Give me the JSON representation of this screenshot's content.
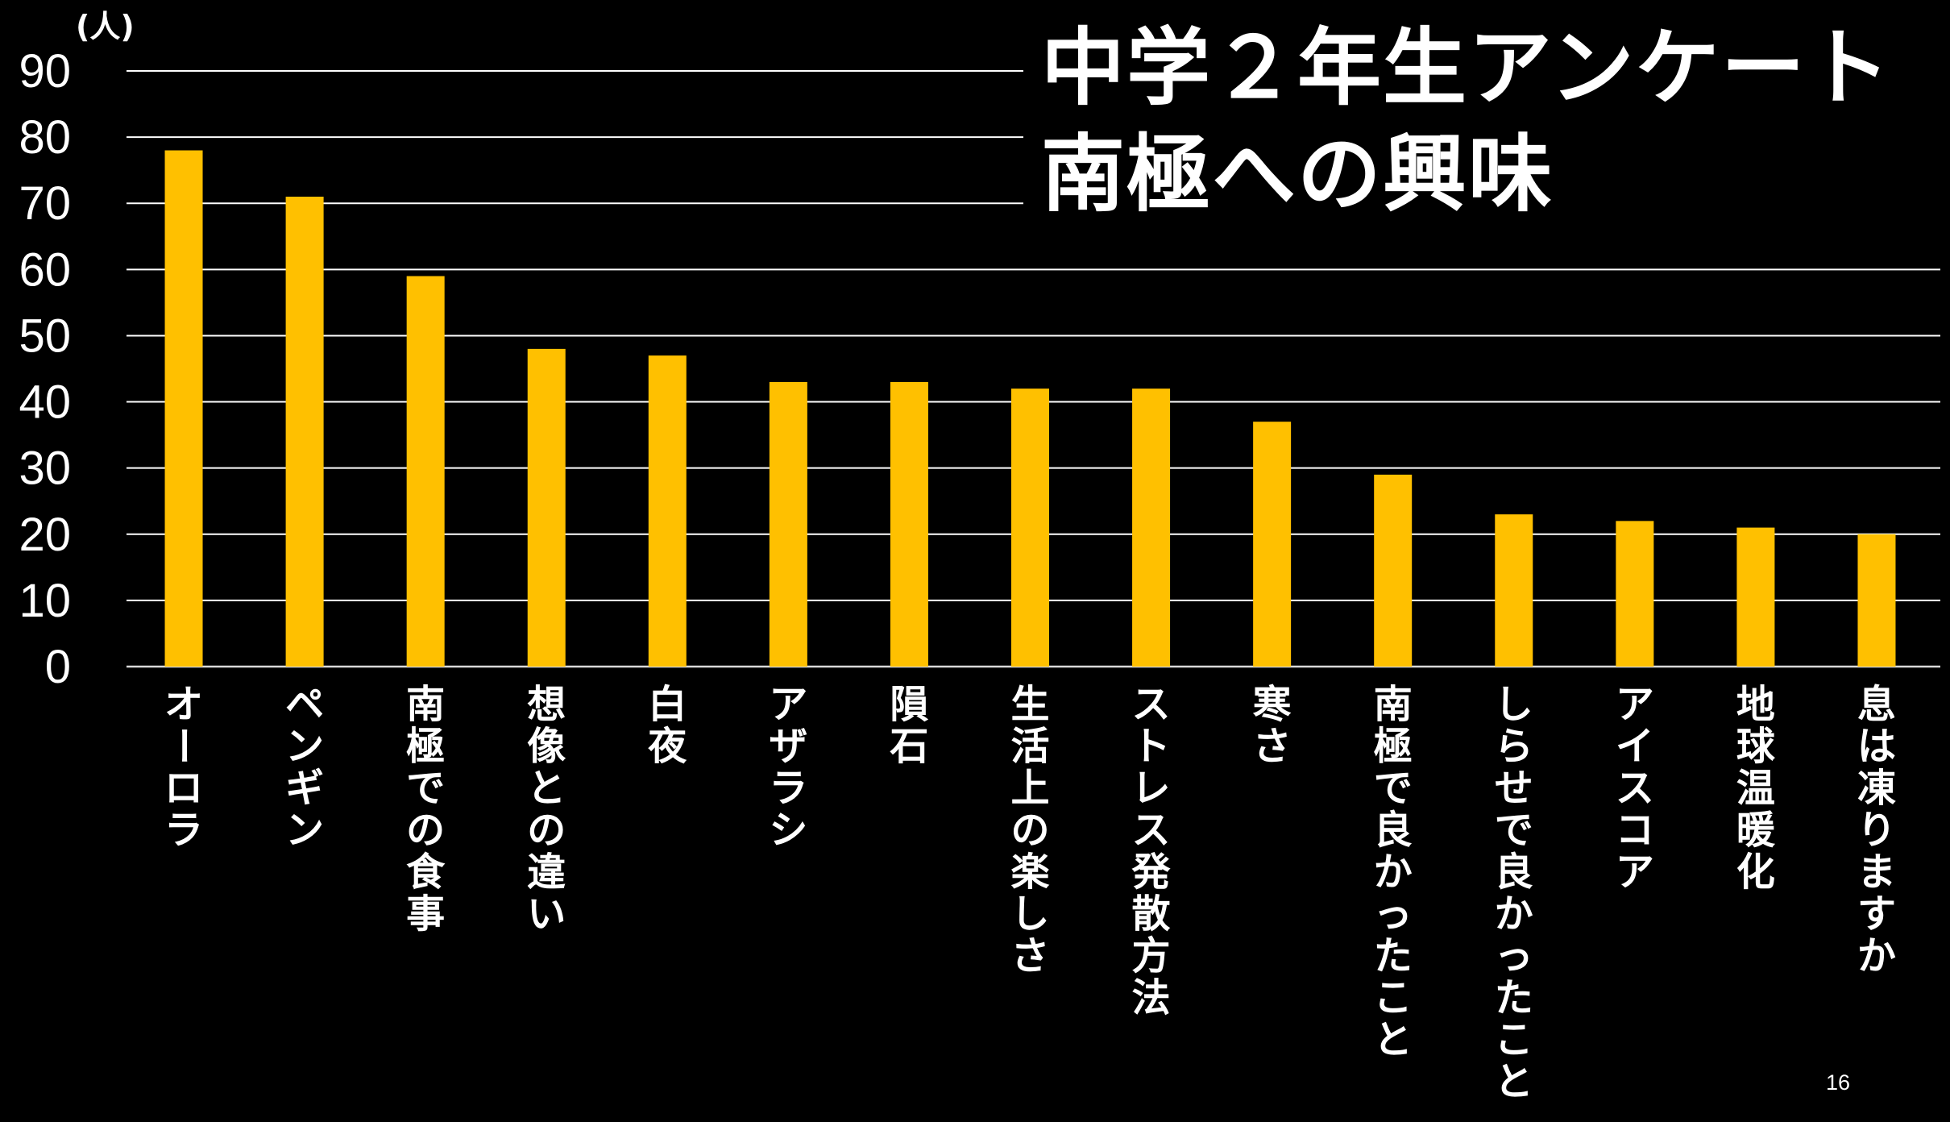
{
  "chart_data": {
    "type": "bar",
    "title": "中学２年生アンケート",
    "subtitle": "南極への興味",
    "ylabel": "(人)",
    "ylim": [
      0,
      90
    ],
    "yticks": [
      0,
      10,
      20,
      30,
      40,
      50,
      60,
      70,
      80,
      90
    ],
    "grid": true,
    "legend": "none",
    "categories": [
      "オーロラ",
      "ペンギン",
      "南極での食事",
      "想像との違い",
      "白夜",
      "アザラシ",
      "隕石",
      "生活上の楽しさ",
      "ストレス発散方法",
      "寒さ",
      "南極で良かったこと",
      "しらせで良かったこと",
      "アイスコア",
      "地球温暖化",
      "息は凍りますか"
    ],
    "values": [
      78,
      71,
      59,
      48,
      47,
      43,
      43,
      42,
      42,
      37,
      29,
      23,
      22,
      21,
      20
    ],
    "colors": {
      "bar": "#FFC000",
      "background": "#000000",
      "grid": "#ffffff",
      "text": "#ffffff"
    }
  },
  "page": {
    "number": "16"
  }
}
